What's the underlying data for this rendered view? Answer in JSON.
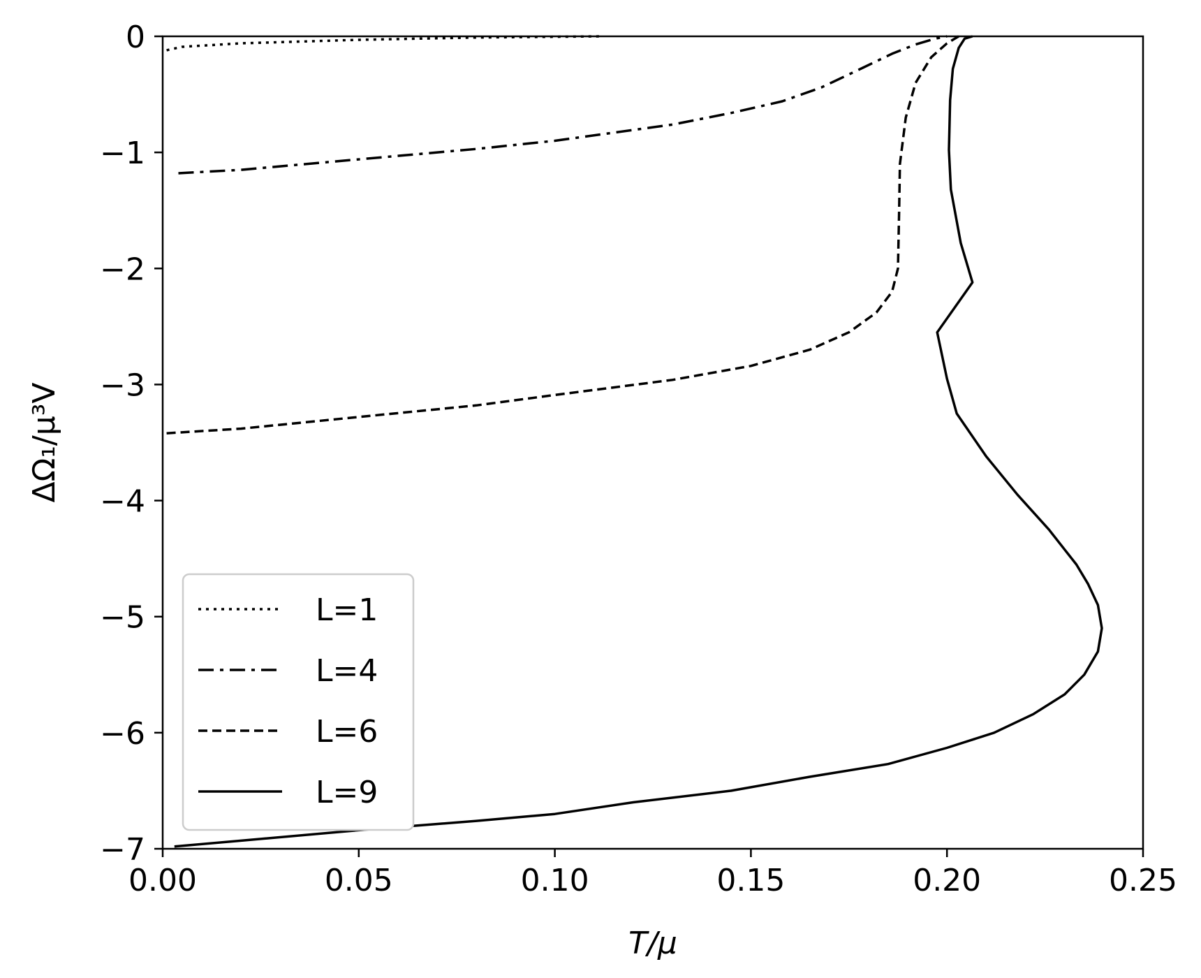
{
  "chart_data": {
    "type": "line",
    "title": "",
    "xlabel": "T/μ",
    "ylabel": "ΔΩ₁/μ³V",
    "xlim": [
      0.0,
      0.25
    ],
    "ylim": [
      -7,
      0
    ],
    "xticks": [
      "0.00",
      "0.05",
      "0.10",
      "0.15",
      "0.20",
      "0.25"
    ],
    "yticks": [
      "0",
      "−1",
      "−2",
      "−3",
      "−4",
      "−5",
      "−6",
      "−7"
    ],
    "grid": false,
    "legend_position": "lower-left",
    "line_color": "#000000",
    "series": [
      {
        "name": "L=1",
        "style": "dotted",
        "points": [
          [
            0.001,
            -0.12
          ],
          [
            0.005,
            -0.09
          ],
          [
            0.02,
            -0.06
          ],
          [
            0.05,
            -0.03
          ],
          [
            0.08,
            -0.01
          ],
          [
            0.112,
            0.0
          ]
        ]
      },
      {
        "name": "L=4",
        "style": "dashdot",
        "points": [
          [
            0.004,
            -1.18
          ],
          [
            0.02,
            -1.15
          ],
          [
            0.05,
            -1.06
          ],
          [
            0.08,
            -0.97
          ],
          [
            0.1,
            -0.9
          ],
          [
            0.13,
            -0.76
          ],
          [
            0.145,
            -0.66
          ],
          [
            0.158,
            -0.56
          ],
          [
            0.168,
            -0.44
          ],
          [
            0.178,
            -0.28
          ],
          [
            0.186,
            -0.15
          ],
          [
            0.192,
            -0.07
          ],
          [
            0.197,
            -0.02
          ],
          [
            0.2,
            0.0
          ]
        ]
      },
      {
        "name": "L=6",
        "style": "dashed",
        "points": [
          [
            0.001,
            -3.42
          ],
          [
            0.02,
            -3.38
          ],
          [
            0.05,
            -3.28
          ],
          [
            0.08,
            -3.18
          ],
          [
            0.1,
            -3.09
          ],
          [
            0.13,
            -2.96
          ],
          [
            0.15,
            -2.84
          ],
          [
            0.165,
            -2.7
          ],
          [
            0.175,
            -2.55
          ],
          [
            0.182,
            -2.38
          ],
          [
            0.186,
            -2.2
          ],
          [
            0.1875,
            -2.0
          ],
          [
            0.1878,
            -1.5
          ],
          [
            0.188,
            -1.1
          ],
          [
            0.1895,
            -0.7
          ],
          [
            0.192,
            -0.4
          ],
          [
            0.196,
            -0.18
          ],
          [
            0.2,
            -0.06
          ],
          [
            0.203,
            0.0
          ]
        ]
      },
      {
        "name": "L=9",
        "style": "solid",
        "points": [
          [
            0.003,
            -6.98
          ],
          [
            0.02,
            -6.93
          ],
          [
            0.05,
            -6.84
          ],
          [
            0.08,
            -6.76
          ],
          [
            0.1,
            -6.7
          ],
          [
            0.12,
            -6.6
          ],
          [
            0.145,
            -6.5
          ],
          [
            0.165,
            -6.38
          ],
          [
            0.185,
            -6.27
          ],
          [
            0.2,
            -6.13
          ],
          [
            0.212,
            -6.0
          ],
          [
            0.222,
            -5.84
          ],
          [
            0.23,
            -5.67
          ],
          [
            0.235,
            -5.5
          ],
          [
            0.2385,
            -5.3
          ],
          [
            0.2395,
            -5.1
          ],
          [
            0.2385,
            -4.9
          ],
          [
            0.236,
            -4.72
          ],
          [
            0.233,
            -4.55
          ],
          [
            0.226,
            -4.25
          ],
          [
            0.218,
            -3.95
          ],
          [
            0.21,
            -3.62
          ],
          [
            0.2025,
            -3.25
          ],
          [
            0.2,
            -2.95
          ],
          [
            0.1975,
            -2.55
          ],
          [
            0.2065,
            -2.12
          ],
          [
            0.2035,
            -1.78
          ],
          [
            0.201,
            -1.32
          ],
          [
            0.2005,
            -0.98
          ],
          [
            0.2008,
            -0.55
          ],
          [
            0.2015,
            -0.28
          ],
          [
            0.203,
            -0.1
          ],
          [
            0.2045,
            -0.02
          ],
          [
            0.2065,
            0.0
          ]
        ]
      }
    ]
  }
}
